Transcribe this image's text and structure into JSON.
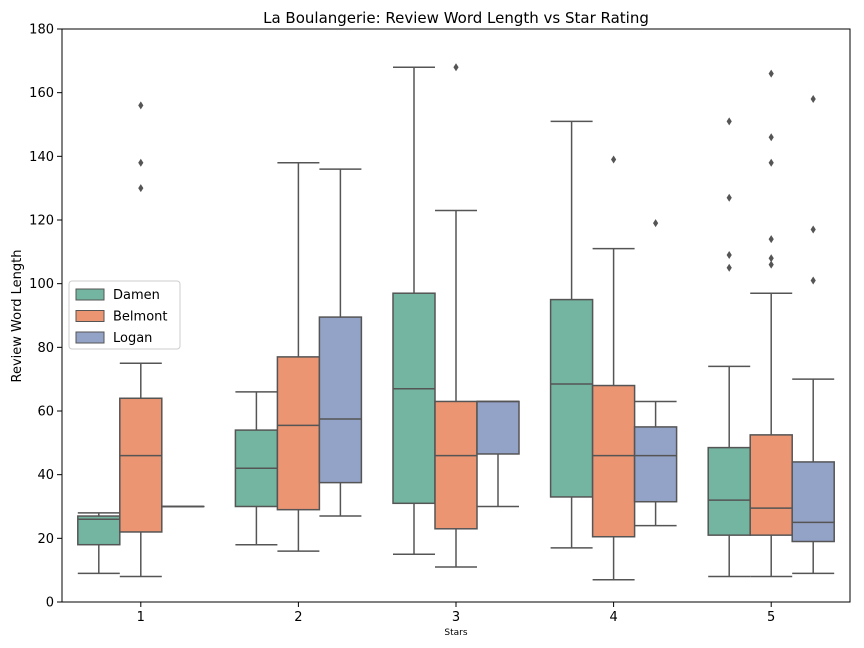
{
  "chart_data": {
    "type": "box",
    "title": "La Boulangerie: Review Word Length vs Star Rating",
    "xlabel": "Stars",
    "ylabel": "Review Word Length",
    "ylim": [
      0,
      180
    ],
    "yticks": [
      0,
      20,
      40,
      60,
      80,
      100,
      120,
      140,
      160,
      180
    ],
    "categories": [
      "1",
      "2",
      "3",
      "4",
      "5"
    ],
    "legend_position": "center-left",
    "series": [
      {
        "name": "Damen",
        "color": "#73b5a0",
        "boxes": [
          {
            "low": 9,
            "q1": 18,
            "median": 26,
            "q3": 27,
            "high": 28,
            "outliers": []
          },
          {
            "low": 18,
            "q1": 30,
            "median": 42,
            "q3": 54,
            "high": 66,
            "outliers": []
          },
          {
            "low": 15,
            "q1": 31,
            "median": 67,
            "q3": 97,
            "high": 168,
            "outliers": []
          },
          {
            "low": 17,
            "q1": 33,
            "median": 68.5,
            "q3": 95,
            "high": 151,
            "outliers": []
          },
          {
            "low": 8,
            "q1": 21,
            "median": 32,
            "q3": 48.5,
            "high": 74,
            "outliers": [
              105,
              109,
              127,
              151
            ]
          }
        ]
      },
      {
        "name": "Belmont",
        "color": "#eb9572",
        "boxes": [
          {
            "low": 8,
            "q1": 22,
            "median": 46,
            "q3": 64,
            "high": 75,
            "outliers": [
              130,
              138,
              156
            ]
          },
          {
            "low": 16,
            "q1": 29,
            "median": 55.5,
            "q3": 77,
            "high": 138,
            "outliers": []
          },
          {
            "low": 11,
            "q1": 23,
            "median": 46,
            "q3": 63,
            "high": 123,
            "outliers": [
              168
            ]
          },
          {
            "low": 7,
            "q1": 20.5,
            "median": 46,
            "q3": 68,
            "high": 111,
            "outliers": [
              139
            ]
          },
          {
            "low": 8,
            "q1": 21,
            "median": 29.5,
            "q3": 52.5,
            "high": 97,
            "outliers": [
              106,
              108,
              114,
              138,
              146,
              166
            ]
          }
        ]
      },
      {
        "name": "Logan",
        "color": "#93a2c7",
        "boxes": [
          {
            "low": 30,
            "q1": 30,
            "median": 30,
            "q3": 30,
            "high": 30,
            "outliers": []
          },
          {
            "low": 27,
            "q1": 37.5,
            "median": 57.5,
            "q3": 89.5,
            "high": 136,
            "outliers": []
          },
          {
            "low": 30,
            "q1": 46.5,
            "median": 63,
            "q3": 63,
            "high": 63,
            "outliers": []
          },
          {
            "low": 24,
            "q1": 31.5,
            "median": 46,
            "q3": 55,
            "high": 63,
            "outliers": [
              119
            ]
          },
          {
            "low": 9,
            "q1": 19,
            "median": 25,
            "q3": 44,
            "high": 70,
            "outliers": [
              101,
              117,
              158
            ]
          }
        ]
      }
    ]
  }
}
